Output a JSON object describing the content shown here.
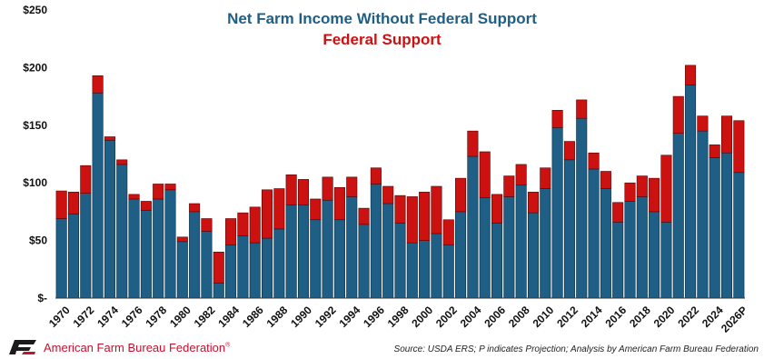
{
  "chart_data": {
    "type": "bar",
    "stacked": true,
    "series": [
      {
        "name": "Net Farm Income Without Federal Support",
        "color": "#1f5f86",
        "values": [
          69,
          73,
          91,
          178,
          137,
          116,
          86,
          76,
          86,
          94,
          49,
          75,
          58,
          13,
          46,
          54,
          48,
          52,
          60,
          81,
          81,
          68,
          85,
          68,
          88,
          64,
          99,
          82,
          65,
          48,
          50,
          56,
          46,
          75,
          123,
          87,
          65,
          88,
          98,
          74,
          95,
          148,
          120,
          156,
          112,
          95,
          66,
          84,
          88,
          75,
          66,
          143,
          185,
          145,
          122,
          126,
          109
        ]
      },
      {
        "name": "Federal Support",
        "color": "#cc1111",
        "values": [
          24,
          19,
          24,
          15,
          3,
          4,
          4,
          8,
          13,
          5,
          4,
          7,
          11,
          27,
          23,
          20,
          31,
          42,
          35,
          26,
          22,
          18,
          20,
          28,
          17,
          14,
          14,
          15,
          24,
          40,
          42,
          41,
          22,
          29,
          22,
          40,
          25,
          18,
          18,
          18,
          18,
          15,
          16,
          16,
          14,
          15,
          17,
          16,
          18,
          29,
          58,
          32,
          17,
          13,
          11,
          32,
          45
        ]
      }
    ],
    "years": [
      1970,
      1971,
      1972,
      1973,
      1974,
      1975,
      1976,
      1977,
      1978,
      1979,
      1980,
      1981,
      1982,
      1983,
      1984,
      1985,
      1986,
      1987,
      1988,
      1989,
      1990,
      1991,
      1992,
      1993,
      1994,
      1995,
      1996,
      1997,
      1998,
      1999,
      2000,
      2001,
      2002,
      2003,
      2004,
      2005,
      2006,
      2007,
      2008,
      2009,
      2010,
      2011,
      2012,
      2013,
      2014,
      2015,
      2016,
      2017,
      2018,
      2019,
      2020,
      2021,
      2022,
      2023,
      2024,
      2025,
      2026
    ],
    "x_tick_labels": [
      "1970",
      "1972",
      "1974",
      "1976",
      "1978",
      "1980",
      "1982",
      "1984",
      "1986",
      "1988",
      "1990",
      "1992",
      "1994",
      "1996",
      "1998",
      "2000",
      "2002",
      "2004",
      "2006",
      "2008",
      "2010",
      "2012",
      "2014",
      "2016",
      "2018",
      "2020",
      "2022",
      "2024",
      "2026P"
    ],
    "y_ticks": [
      0,
      50,
      100,
      150,
      200,
      250
    ],
    "y_tick_labels": [
      "$-",
      "$50",
      "$100",
      "$150",
      "$200",
      "$250"
    ],
    "ylim": [
      0,
      250
    ],
    "grid": false,
    "legend_placement": "top-center"
  },
  "footer": {
    "org_name": "American Farm Bureau Federation",
    "org_mark": "®",
    "source": "Source: USDA ERS; P indicates Projection; Analysis by American Farm Bureau Federation"
  },
  "colors": {
    "base": "#1f5f86",
    "support": "#cc1111",
    "brand": "#c8102e"
  }
}
